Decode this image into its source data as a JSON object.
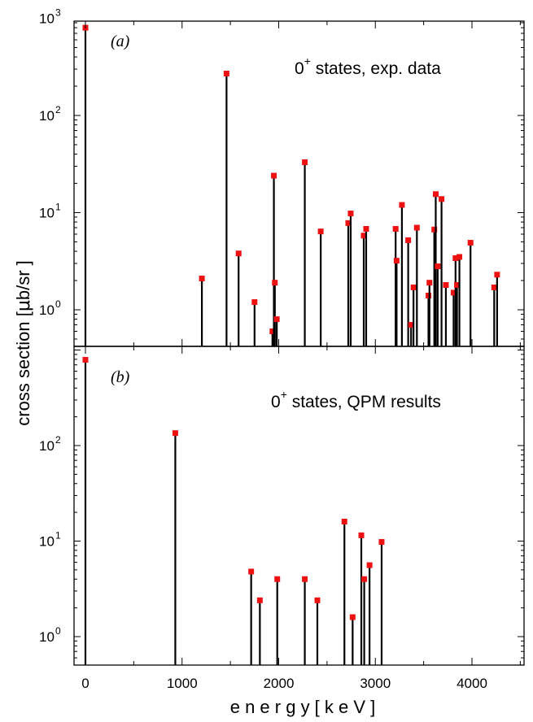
{
  "chart_data": [
    {
      "type": "bar",
      "panel_label": "(a)",
      "title_main": "0",
      "title_sup": "+",
      "title_rest": " states, exp. data",
      "ylabel_pre": "cross section  [",
      "ylabel_mu": "μ",
      "ylabel_post": "b/sr ]",
      "xlabel": "",
      "yscale": "log",
      "ylim": [
        0.4,
        1000
      ],
      "xlim": [
        -100,
        4580
      ],
      "y_ticks": [
        {
          "base": "10",
          "exp": "0",
          "value": 1
        },
        {
          "base": "10",
          "exp": "1",
          "value": 10
        },
        {
          "base": "10",
          "exp": "2",
          "value": 100
        },
        {
          "base": "10",
          "exp": "3",
          "value": 1000
        }
      ],
      "marker_color": "#ee1111",
      "points": [
        {
          "x": 0,
          "y": 800
        },
        {
          "x": 1205,
          "y": 2.1
        },
        {
          "x": 1460,
          "y": 270
        },
        {
          "x": 1585,
          "y": 3.8
        },
        {
          "x": 1750,
          "y": 1.2
        },
        {
          "x": 1935,
          "y": 0.6
        },
        {
          "x": 1950,
          "y": 24
        },
        {
          "x": 1960,
          "y": 1.9
        },
        {
          "x": 1980,
          "y": 0.8
        },
        {
          "x": 2270,
          "y": 33
        },
        {
          "x": 2435,
          "y": 6.4
        },
        {
          "x": 2720,
          "y": 7.8
        },
        {
          "x": 2745,
          "y": 9.8
        },
        {
          "x": 2880,
          "y": 5.8
        },
        {
          "x": 2905,
          "y": 6.8
        },
        {
          "x": 3210,
          "y": 6.8
        },
        {
          "x": 3220,
          "y": 3.2
        },
        {
          "x": 3275,
          "y": 12
        },
        {
          "x": 3340,
          "y": 5.2
        },
        {
          "x": 3370,
          "y": 0.7
        },
        {
          "x": 3395,
          "y": 1.7
        },
        {
          "x": 3430,
          "y": 7
        },
        {
          "x": 3550,
          "y": 1.4
        },
        {
          "x": 3560,
          "y": 1.9
        },
        {
          "x": 3610,
          "y": 6.7
        },
        {
          "x": 3625,
          "y": 15.5
        },
        {
          "x": 3645,
          "y": 2.8
        },
        {
          "x": 3685,
          "y": 13.8
        },
        {
          "x": 3730,
          "y": 1.8
        },
        {
          "x": 3810,
          "y": 1.5
        },
        {
          "x": 3830,
          "y": 3.4
        },
        {
          "x": 3845,
          "y": 1.8
        },
        {
          "x": 3870,
          "y": 3.5
        },
        {
          "x": 3985,
          "y": 4.9
        },
        {
          "x": 4230,
          "y": 1.7
        },
        {
          "x": 4260,
          "y": 2.3
        }
      ]
    },
    {
      "type": "bar",
      "panel_label": "(b)",
      "title_main": "0",
      "title_sup": "+",
      "title_rest": " states, QPM results",
      "xlabel": "e n e r g y  [ k e V ]",
      "yscale": "log",
      "ylim": [
        0.4,
        1000
      ],
      "xlim": [
        -100,
        4580
      ],
      "x_ticks": [
        "0",
        "1000",
        "2000",
        "3000",
        "4000"
      ],
      "x_tick_values": [
        0,
        1000,
        2000,
        3000,
        4000
      ],
      "y_ticks": [
        {
          "base": "10",
          "exp": "0",
          "value": 1
        },
        {
          "base": "10",
          "exp": "1",
          "value": 10
        },
        {
          "base": "10",
          "exp": "2",
          "value": 100
        }
      ],
      "marker_color": "#ee1111",
      "points": [
        {
          "x": 0,
          "y": 790
        },
        {
          "x": 930,
          "y": 135
        },
        {
          "x": 1715,
          "y": 4.8
        },
        {
          "x": 1805,
          "y": 2.4
        },
        {
          "x": 1985,
          "y": 4.0
        },
        {
          "x": 2270,
          "y": 4.0
        },
        {
          "x": 2400,
          "y": 2.4
        },
        {
          "x": 2680,
          "y": 16
        },
        {
          "x": 2765,
          "y": 1.6
        },
        {
          "x": 2855,
          "y": 11.5
        },
        {
          "x": 2885,
          "y": 4.0
        },
        {
          "x": 2940,
          "y": 5.6
        },
        {
          "x": 3065,
          "y": 9.8
        }
      ]
    }
  ]
}
